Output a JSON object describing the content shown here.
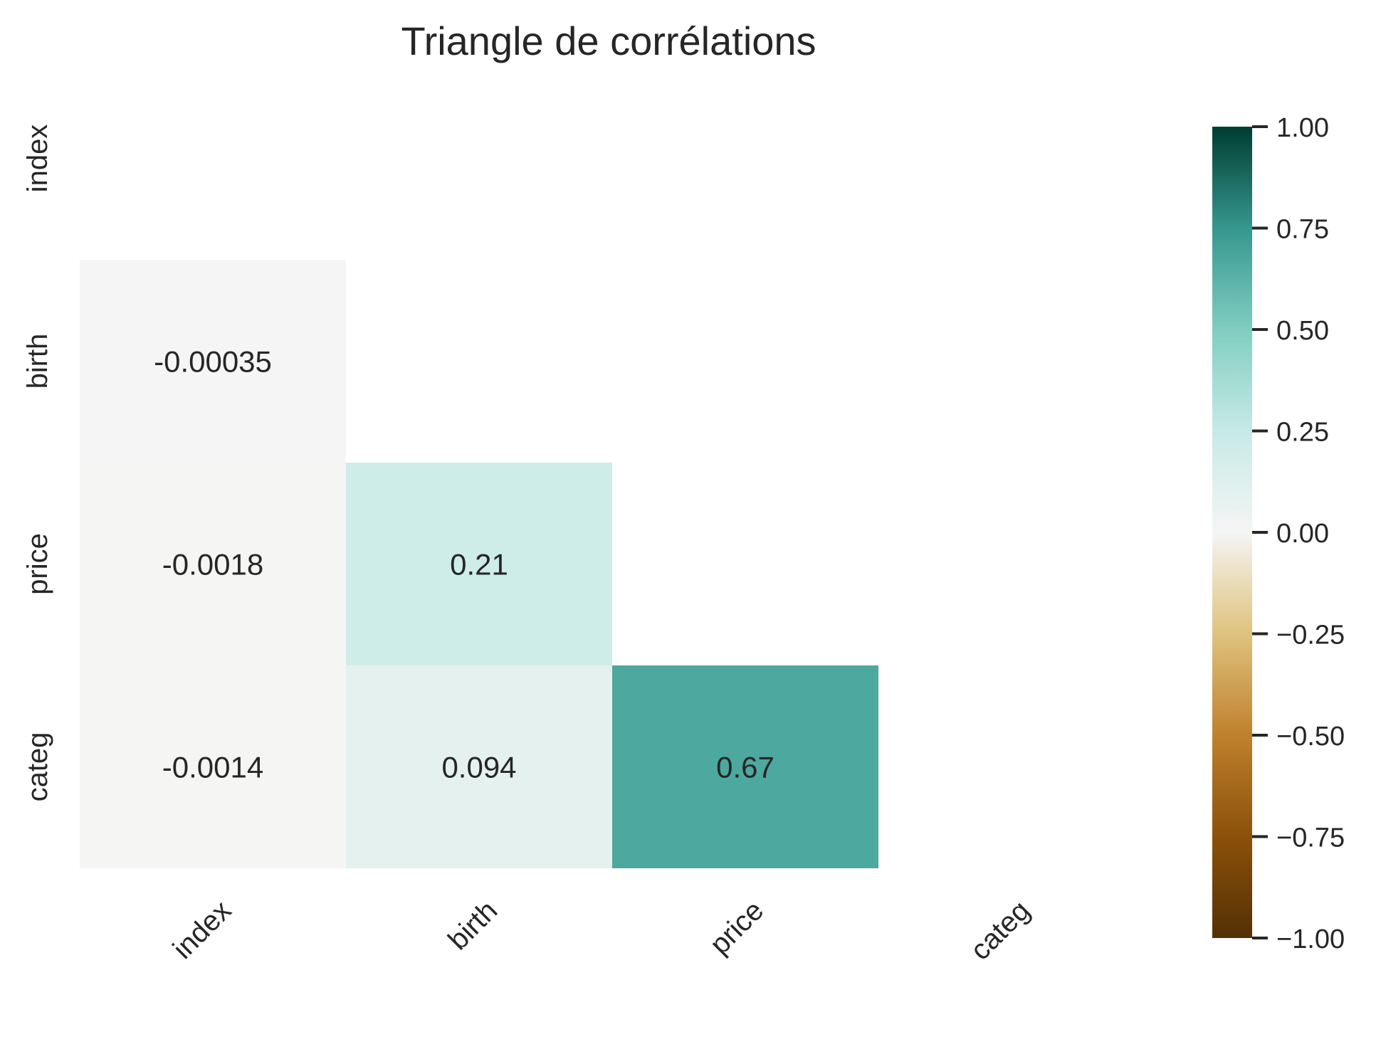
{
  "chart_data": {
    "type": "heatmap",
    "title": "Triangle de corrélations",
    "xlabel": "",
    "ylabel": "",
    "rows": [
      "index",
      "birth",
      "price",
      "categ"
    ],
    "columns": [
      "index",
      "birth",
      "price",
      "categ"
    ],
    "mask": "upper-triangle-including-diagonal",
    "values": [
      [
        null,
        null,
        null,
        null
      ],
      [
        -0.00035,
        null,
        null,
        null
      ],
      [
        -0.0018,
        0.21,
        null,
        null
      ],
      [
        -0.0014,
        0.094,
        0.67,
        null
      ]
    ],
    "annotations": [
      [
        null,
        null,
        null,
        null
      ],
      [
        "-0.00035",
        null,
        null,
        null
      ],
      [
        "-0.0018",
        "0.21",
        null,
        null
      ],
      [
        "-0.0014",
        "0.094",
        "0.67",
        null
      ]
    ],
    "colormap": "BrBG",
    "vmin": -1.0,
    "vmax": 1.0,
    "colorbar": {
      "ticks": [
        1.0,
        0.75,
        0.5,
        0.25,
        0.0,
        -0.25,
        -0.5,
        -0.75,
        -1.0
      ],
      "tick_labels": [
        "1.00",
        "0.75",
        "0.50",
        "0.25",
        "0.00",
        "−0.25",
        "−0.50",
        "−0.75",
        "−1.00"
      ],
      "stops": [
        {
          "v": -1.0,
          "color": "#543005"
        },
        {
          "v": -0.75,
          "color": "#8c510a"
        },
        {
          "v": -0.5,
          "color": "#bf812d"
        },
        {
          "v": -0.25,
          "color": "#dfc27d"
        },
        {
          "v": 0.0,
          "color": "#f5f5f5"
        },
        {
          "v": 0.25,
          "color": "#c7eae5"
        },
        {
          "v": 0.5,
          "color": "#80cdc1"
        },
        {
          "v": 0.75,
          "color": "#35978f"
        },
        {
          "v": 1.0,
          "color": "#003c30"
        }
      ]
    },
    "grid": false
  }
}
